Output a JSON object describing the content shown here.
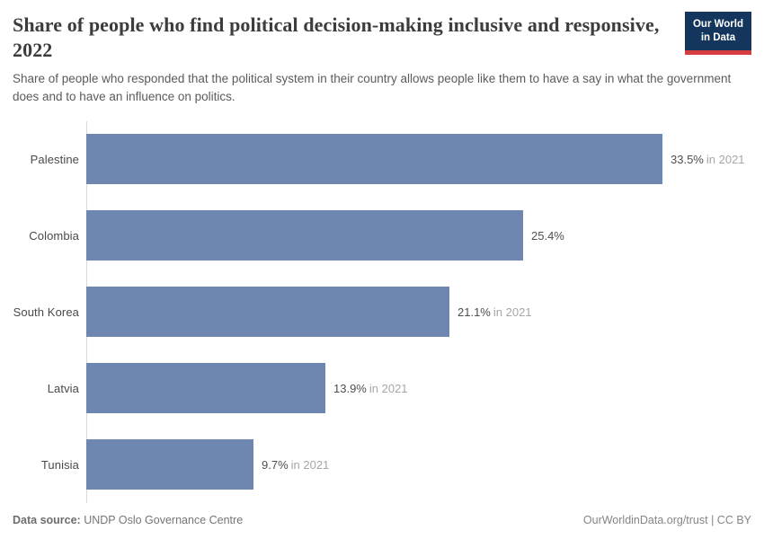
{
  "header": {
    "title": "Share of people who find political decision-making inclusive and responsive, 2022",
    "subtitle": "Share of people who responded that the political system in their country allows people like them to have a say in what the government does and to have an influence on politics.",
    "logo_line1": "Our World",
    "logo_line2": "in Data",
    "logo_bg_color": "#14365c",
    "logo_accent_color": "#d63d3f"
  },
  "chart_data": {
    "type": "bar",
    "orientation": "horizontal",
    "title": "Share of people who find political decision-making inclusive and responsive, 2022",
    "categories": [
      "Palestine",
      "Colombia",
      "South Korea",
      "Latvia",
      "Tunisia"
    ],
    "values": [
      33.5,
      25.4,
      21.1,
      13.9,
      9.7
    ],
    "value_labels": [
      "33.5%",
      "25.4%",
      "21.1%",
      "13.9%",
      "9.7%"
    ],
    "year_notes": [
      "in 2021",
      "",
      "in 2021",
      "in 2021",
      "in 2021"
    ],
    "unit": "%",
    "xlim": [
      0,
      33.5
    ],
    "bar_color": "#6d87b1",
    "grid": false,
    "legend": "none"
  },
  "footer": {
    "source_label": "Data source:",
    "source_value": "UNDP Oslo Governance Centre",
    "attribution": "OurWorldinData.org/trust | CC BY"
  }
}
